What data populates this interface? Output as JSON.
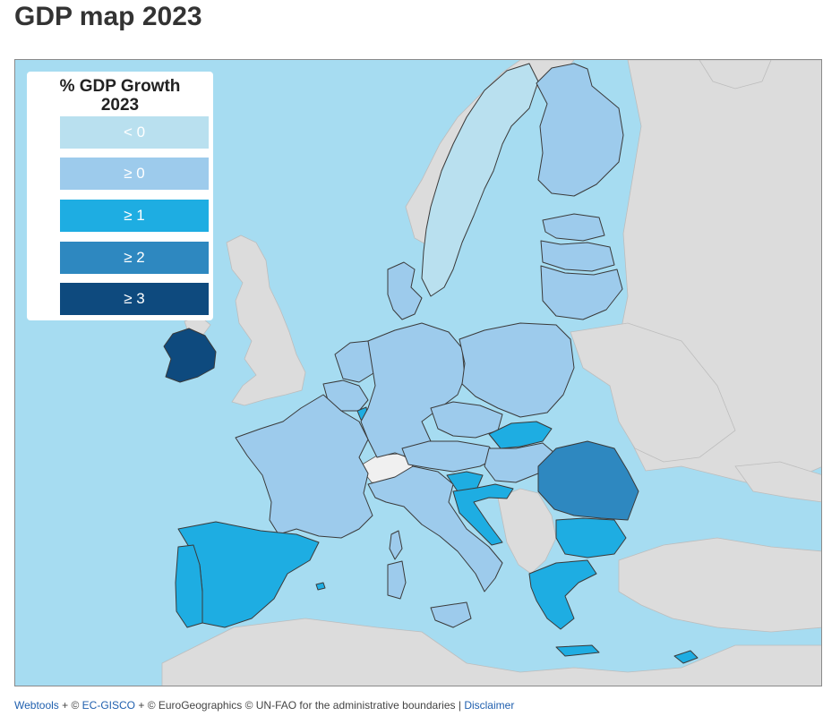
{
  "page": {
    "title": "GDP map 2023"
  },
  "map": {
    "sea_color": "#a6dcf1",
    "nonmember_color": "#dcdcdc",
    "legend": {
      "title_line1": "% GDP Growth",
      "title_line2": "2023",
      "items": [
        {
          "label": "< 0",
          "color": "#b9e0ef"
        },
        {
          "label": "≥ 0",
          "color": "#9dcbec"
        },
        {
          "label": "≥ 1",
          "color": "#1eade2"
        },
        {
          "label": "≥ 2",
          "color": "#2e88c0"
        },
        {
          "label": "≥ 3",
          "color": "#0e4a7e"
        }
      ]
    },
    "countries": [
      {
        "id": "IE",
        "class": 4
      },
      {
        "id": "ES",
        "class": 2
      },
      {
        "id": "PT",
        "class": 2
      },
      {
        "id": "FR",
        "class": 1
      },
      {
        "id": "DE",
        "class": 1
      },
      {
        "id": "PL",
        "class": 1
      },
      {
        "id": "IT",
        "class": 1
      },
      {
        "id": "AT",
        "class": 1
      },
      {
        "id": "CZ",
        "class": 1
      },
      {
        "id": "HU",
        "class": 1
      },
      {
        "id": "SK",
        "class": 2
      },
      {
        "id": "HR",
        "class": 2
      },
      {
        "id": "SI",
        "class": 2
      },
      {
        "id": "RO",
        "class": 3
      },
      {
        "id": "BG",
        "class": 2
      },
      {
        "id": "GR",
        "class": 2
      },
      {
        "id": "SE",
        "class": 0
      },
      {
        "id": "FI",
        "class": 1
      },
      {
        "id": "EE",
        "class": 1
      },
      {
        "id": "LV",
        "class": 1
      },
      {
        "id": "LT",
        "class": 1
      },
      {
        "id": "DK",
        "class": 1
      },
      {
        "id": "NL",
        "class": 1
      },
      {
        "id": "BE",
        "class": 1
      },
      {
        "id": "LU",
        "class": 2
      },
      {
        "id": "CY",
        "class": 2
      },
      {
        "id": "MT",
        "class": 2
      }
    ]
  },
  "footer": {
    "link_webtools": "Webtools",
    "text_plus1": " + © ",
    "link_gisco": "EC-GISCO",
    "text_rest": " + © EuroGeographics © UN-FAO for the administrative boundaries | ",
    "link_disclaimer": "Disclaimer"
  }
}
